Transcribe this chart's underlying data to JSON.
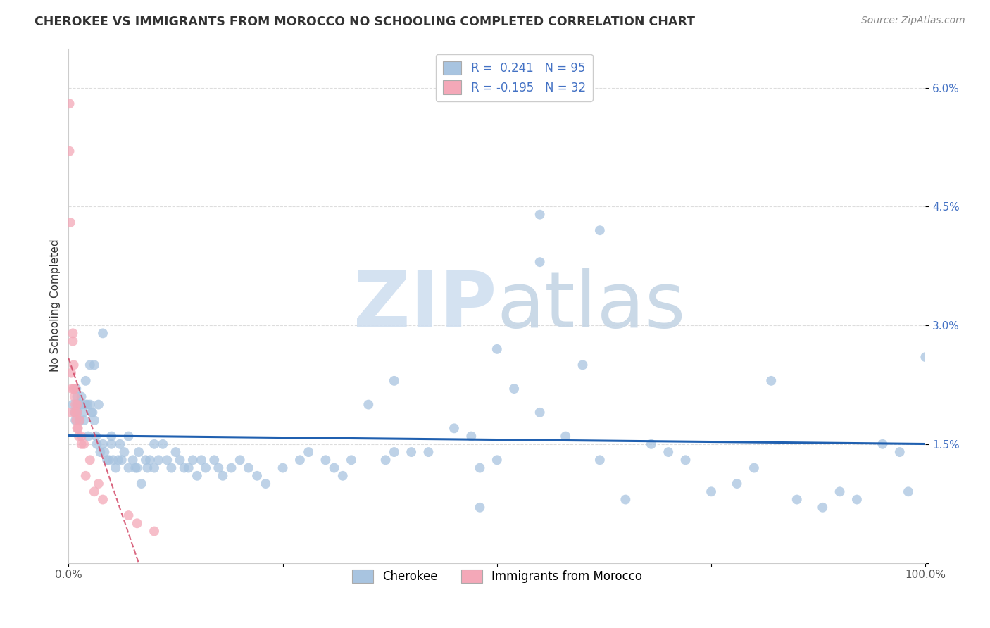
{
  "title": "CHEROKEE VS IMMIGRANTS FROM MOROCCO NO SCHOOLING COMPLETED CORRELATION CHART",
  "source": "Source: ZipAtlas.com",
  "ylabel": "No Schooling Completed",
  "xlim": [
    0,
    1.0
  ],
  "ylim": [
    0,
    0.065
  ],
  "yticks": [
    0.0,
    0.015,
    0.03,
    0.045,
    0.06
  ],
  "yticklabels": [
    "",
    "1.5%",
    "3.0%",
    "4.5%",
    "6.0%"
  ],
  "color_cherokee": "#a8c4e0",
  "color_morocco": "#f4a8b8",
  "line_color_cherokee": "#2060b0",
  "line_color_morocco": "#d04060",
  "background_color": "#ffffff",
  "cherokee_x": [
    0.005,
    0.007,
    0.008,
    0.009,
    0.01,
    0.01,
    0.01,
    0.012,
    0.013,
    0.015,
    0.015,
    0.017,
    0.018,
    0.02,
    0.02,
    0.022,
    0.023,
    0.025,
    0.025,
    0.027,
    0.028,
    0.03,
    0.03,
    0.032,
    0.033,
    0.035,
    0.037,
    0.04,
    0.04,
    0.042,
    0.045,
    0.047,
    0.05,
    0.05,
    0.052,
    0.055,
    0.058,
    0.06,
    0.062,
    0.065,
    0.07,
    0.07,
    0.075,
    0.078,
    0.08,
    0.082,
    0.085,
    0.09,
    0.092,
    0.095,
    0.1,
    0.1,
    0.105,
    0.11,
    0.115,
    0.12,
    0.125,
    0.13,
    0.135,
    0.14,
    0.145,
    0.15,
    0.155,
    0.16,
    0.17,
    0.175,
    0.18,
    0.19,
    0.2,
    0.21,
    0.22,
    0.23,
    0.25,
    0.27,
    0.28,
    0.3,
    0.31,
    0.32,
    0.33,
    0.35,
    0.37,
    0.38,
    0.38,
    0.4,
    0.42,
    0.45,
    0.47,
    0.48,
    0.5,
    0.52,
    0.55,
    0.55,
    0.58,
    0.6,
    0.62
  ],
  "cherokee_y": [
    0.02,
    0.019,
    0.018,
    0.022,
    0.02,
    0.019,
    0.021,
    0.02,
    0.018,
    0.021,
    0.02,
    0.019,
    0.018,
    0.023,
    0.02,
    0.02,
    0.016,
    0.025,
    0.02,
    0.019,
    0.019,
    0.025,
    0.018,
    0.016,
    0.015,
    0.02,
    0.014,
    0.029,
    0.015,
    0.014,
    0.013,
    0.013,
    0.016,
    0.015,
    0.013,
    0.012,
    0.013,
    0.015,
    0.013,
    0.014,
    0.012,
    0.016,
    0.013,
    0.012,
    0.012,
    0.014,
    0.01,
    0.013,
    0.012,
    0.013,
    0.012,
    0.015,
    0.013,
    0.015,
    0.013,
    0.012,
    0.014,
    0.013,
    0.012,
    0.012,
    0.013,
    0.011,
    0.013,
    0.012,
    0.013,
    0.012,
    0.011,
    0.012,
    0.013,
    0.012,
    0.011,
    0.01,
    0.012,
    0.013,
    0.014,
    0.013,
    0.012,
    0.011,
    0.013,
    0.02,
    0.013,
    0.023,
    0.014,
    0.014,
    0.014,
    0.017,
    0.016,
    0.012,
    0.027,
    0.022,
    0.019,
    0.044,
    0.016,
    0.025,
    0.042
  ],
  "cherokee_x2": [
    0.62,
    0.65,
    0.68,
    0.7,
    0.72,
    0.75,
    0.78,
    0.8,
    0.82,
    0.85,
    0.88,
    0.9,
    0.92,
    0.95,
    0.97,
    0.98,
    1.0,
    0.55,
    0.5,
    0.48
  ],
  "cherokee_y2": [
    0.013,
    0.008,
    0.015,
    0.014,
    0.013,
    0.009,
    0.01,
    0.012,
    0.023,
    0.008,
    0.007,
    0.009,
    0.008,
    0.015,
    0.014,
    0.009,
    0.026,
    0.038,
    0.013,
    0.007
  ],
  "morocco_x": [
    0.001,
    0.001,
    0.002,
    0.003,
    0.003,
    0.004,
    0.005,
    0.005,
    0.006,
    0.006,
    0.007,
    0.007,
    0.008,
    0.008,
    0.009,
    0.01,
    0.01,
    0.01,
    0.011,
    0.012,
    0.013,
    0.015,
    0.015,
    0.018,
    0.02,
    0.025,
    0.03,
    0.035,
    0.04,
    0.07,
    0.08,
    0.1
  ],
  "morocco_y": [
    0.058,
    0.052,
    0.043,
    0.024,
    0.019,
    0.022,
    0.029,
    0.028,
    0.025,
    0.022,
    0.022,
    0.021,
    0.02,
    0.019,
    0.018,
    0.02,
    0.019,
    0.017,
    0.017,
    0.016,
    0.018,
    0.015,
    0.016,
    0.015,
    0.011,
    0.013,
    0.009,
    0.01,
    0.008,
    0.006,
    0.005,
    0.004
  ],
  "watermark_zip_color": "#d0dff0",
  "watermark_atlas_color": "#c5d5e5",
  "grid_color": "#dddddd",
  "tick_color": "#4472c4"
}
